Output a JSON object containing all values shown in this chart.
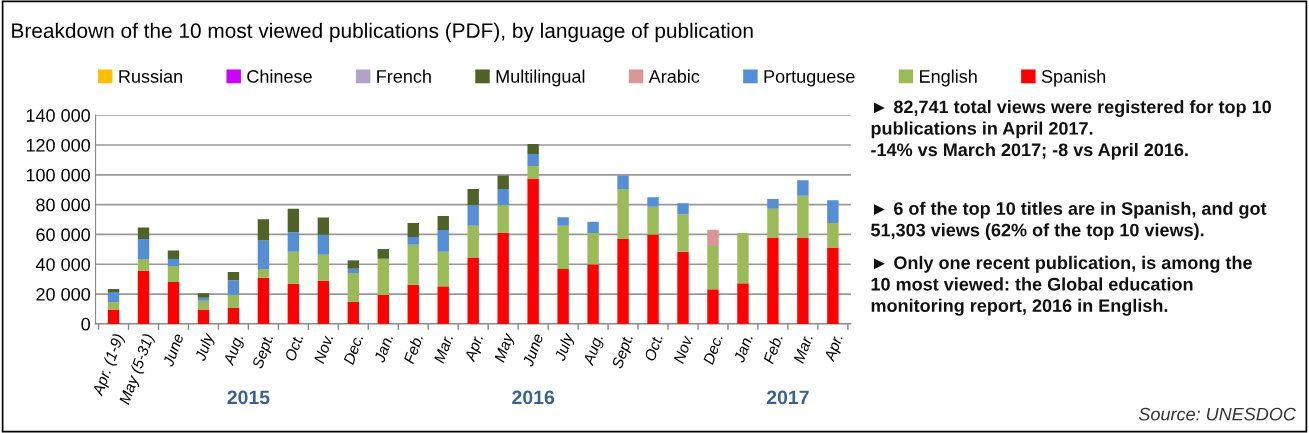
{
  "chart_data": {
    "type": "bar",
    "stacked": true,
    "title": "Breakdown of the 10 most viewed publications (PDF), by language of publication",
    "categories": [
      "Apr. (1-9)",
      "May (5-31)",
      "June",
      "July",
      "Aug.",
      "Sept.",
      "Oct.",
      "Nov.",
      "Dec.",
      "Jan.",
      "Feb.",
      "Mar.",
      "Apr.",
      "May",
      "June",
      "July",
      "Aug.",
      "Sept.",
      "Oct.",
      "Nov.",
      "Dec.",
      "Jan.",
      "Feb.",
      "Mar.",
      "Apr."
    ],
    "series": [
      {
        "name": "Spanish",
        "color": "#ff0000",
        "values": [
          9600,
          35700,
          28100,
          9600,
          10700,
          31000,
          27000,
          29000,
          14700,
          19400,
          26300,
          25200,
          44600,
          60900,
          97500,
          36800,
          39900,
          56900,
          60000,
          48400,
          23200,
          27200,
          58000,
          58000,
          51300
        ]
      },
      {
        "name": "English",
        "color": "#9bbb59",
        "values": [
          5100,
          7800,
          10700,
          6000,
          8900,
          5800,
          21400,
          17400,
          19400,
          24300,
          26800,
          23200,
          21200,
          18900,
          8400,
          29000,
          21000,
          33600,
          18500,
          25200,
          29000,
          33700,
          19200,
          27900,
          16300
        ]
      },
      {
        "name": "Portuguese",
        "color": "#558ed5",
        "values": [
          6700,
          13400,
          4700,
          2000,
          9600,
          19200,
          13100,
          13400,
          2900,
          null,
          5100,
          14500,
          14000,
          10700,
          8100,
          5800,
          7600,
          9000,
          6500,
          7400,
          null,
          null,
          6600,
          10400,
          15400
        ]
      },
      {
        "name": "Arabic",
        "color": "#d99694",
        "values": [
          null,
          null,
          null,
          null,
          null,
          null,
          null,
          null,
          null,
          null,
          null,
          null,
          null,
          null,
          null,
          null,
          null,
          null,
          null,
          null,
          10900,
          null,
          null,
          null,
          null
        ]
      },
      {
        "name": "Multilingual",
        "color": "#4f6228",
        "values": [
          2000,
          7800,
          5800,
          2900,
          5600,
          14200,
          15700,
          11600,
          5600,
          6500,
          9400,
          9400,
          10700,
          9000,
          6600,
          null,
          null,
          null,
          null,
          null,
          null,
          null,
          null,
          null,
          null
        ]
      },
      {
        "name": "French",
        "color": "#b3a2c7",
        "values": [
          null,
          null,
          null,
          null,
          null,
          null,
          null,
          null,
          null,
          null,
          null,
          null,
          null,
          null,
          null,
          null,
          null,
          null,
          null,
          null,
          null,
          null,
          null,
          null,
          null
        ]
      },
      {
        "name": "Chinese",
        "color": "#cc00ff",
        "values": [
          null,
          null,
          null,
          null,
          null,
          null,
          null,
          null,
          null,
          null,
          null,
          null,
          null,
          null,
          null,
          null,
          null,
          null,
          null,
          null,
          null,
          null,
          null,
          null,
          null
        ]
      },
      {
        "name": "Russian",
        "color": "#ffc000",
        "values": [
          null,
          null,
          null,
          null,
          null,
          null,
          null,
          null,
          null,
          null,
          null,
          null,
          null,
          null,
          null,
          null,
          null,
          null,
          null,
          null,
          null,
          null,
          null,
          null,
          null
        ]
      }
    ],
    "ylim": [
      0,
      140000
    ],
    "yticks": [
      {
        "value": 0,
        "label": "0"
      },
      {
        "value": 20000,
        "label": "20 000"
      },
      {
        "value": 40000,
        "label": "40 000"
      },
      {
        "value": 60000,
        "label": "60 000"
      },
      {
        "value": 80000,
        "label": "80 000"
      },
      {
        "value": 100000,
        "label": "100 000"
      },
      {
        "value": 120000,
        "label": "120 000"
      },
      {
        "value": 140000,
        "label": "140 000"
      }
    ],
    "grid": "y",
    "legend": "top",
    "annotations": [
      "2015",
      "2016",
      "2017",
      "► 82,741 total views were registered for top 10\npublications in April 2017.\n-14% vs March 2017; -8 vs April 2016.",
      "► 6 of the top 10 titles are in Spanish, and got\n51,303 views (62% of the top 10 views).",
      "► Only one recent publication, is among the\n10 most viewed: the Global education\nmonitoring report, 2016 in English.",
      "Source: UNESDOC"
    ]
  }
}
